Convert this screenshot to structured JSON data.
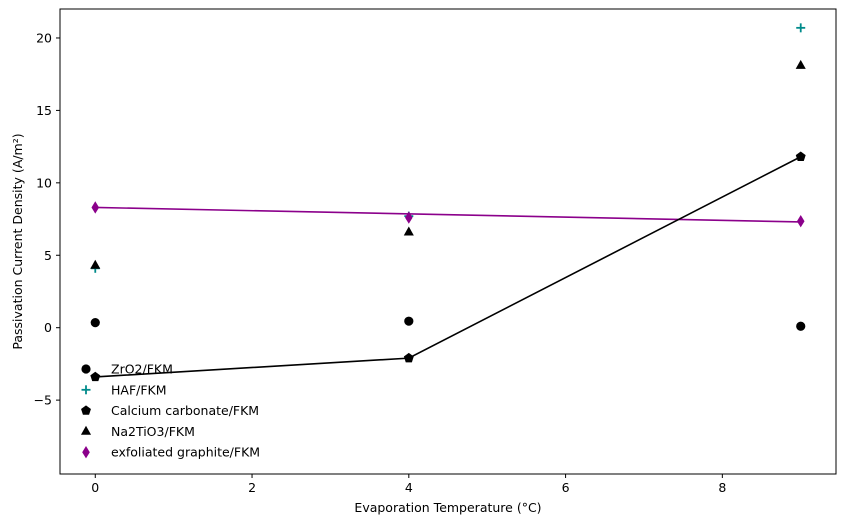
{
  "chart_data": {
    "type": "scatter",
    "xlabel": "Evaporation Temperature (°C)",
    "ylabel": "Passivation Current Density (A/m²)",
    "xlim": [
      -0.45,
      9.45
    ],
    "ylim": [
      -10.1,
      22.0
    ],
    "xticks": [
      0,
      2,
      4,
      6,
      8
    ],
    "yticks": [
      -5,
      0,
      5,
      10,
      15,
      20
    ],
    "grid": false,
    "legend_position": "lower-left",
    "series": [
      {
        "name": "ZrO2/FKM",
        "marker": "circle",
        "color": "#000000",
        "line": false,
        "x": [
          0,
          4,
          9
        ],
        "y": [
          0.35,
          0.45,
          0.1
        ]
      },
      {
        "name": "HAF/FKM",
        "marker": "plus",
        "color": "#008b8b",
        "line": false,
        "x": [
          0,
          4,
          9
        ],
        "y": [
          4.1,
          7.7,
          20.7
        ]
      },
      {
        "name": "Calcium carbonate/FKM",
        "marker": "pentagon",
        "color": "#000000",
        "line": true,
        "x": [
          0,
          4,
          9
        ],
        "y": [
          -3.4,
          -2.1,
          11.8
        ]
      },
      {
        "name": "Na2TiO3/FKM",
        "marker": "triangle",
        "color": "#000000",
        "line": false,
        "x": [
          0,
          4,
          9
        ],
        "y": [
          4.3,
          6.6,
          18.1
        ]
      },
      {
        "name": "exfoliated graphite/FKM",
        "marker": "thin-diamond",
        "color": "#8b008b",
        "line": false,
        "x": [
          0,
          4,
          9
        ],
        "y": [
          8.3,
          7.6,
          7.35
        ]
      }
    ],
    "trend_line": {
      "color": "#8b008b",
      "x": [
        0,
        9
      ],
      "y": [
        8.3,
        7.3
      ]
    }
  }
}
